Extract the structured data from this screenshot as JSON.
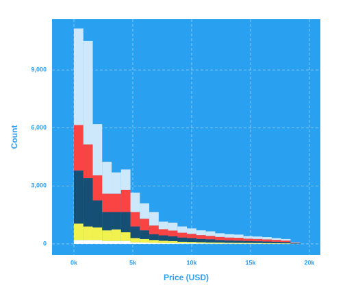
{
  "chart_data": {
    "type": "histogram",
    "x_label": "Price (USD)",
    "y_label": "Count",
    "bins": [
      0,
      800,
      1600,
      2400,
      3200,
      4000,
      4800,
      5600,
      6400,
      7200,
      8000,
      8800,
      9600,
      10400,
      11200,
      12000,
      12800,
      13600,
      14400,
      15200,
      16000,
      16800,
      17600,
      18400,
      19200
    ],
    "series": [
      {
        "color": "#ffffff",
        "values": [
          200,
          200,
          200,
          150,
          150,
          150,
          80,
          70,
          50,
          40,
          40,
          30,
          30,
          25,
          20,
          20,
          20,
          15,
          15,
          15,
          10,
          10,
          10,
          5
        ]
      },
      {
        "color": "#f1f150",
        "values": [
          850,
          700,
          650,
          550,
          600,
          450,
          220,
          180,
          150,
          120,
          100,
          80,
          70,
          60,
          55,
          50,
          40,
          40,
          35,
          30,
          30,
          25,
          20,
          5
        ]
      },
      {
        "color": "#164f74",
        "values": [
          2750,
          2500,
          1400,
          950,
          900,
          1050,
          600,
          450,
          300,
          280,
          250,
          220,
          200,
          170,
          160,
          130,
          120,
          110,
          100,
          90,
          80,
          70,
          60,
          20
        ]
      },
      {
        "color": "#fa4343",
        "values": [
          2350,
          1750,
          1300,
          950,
          950,
          1150,
          750,
          600,
          450,
          320,
          300,
          250,
          220,
          200,
          180,
          160,
          150,
          150,
          120,
          120,
          110,
          100,
          80,
          30
        ]
      },
      {
        "color": "#cde8fb",
        "values": [
          5000,
          5350,
          2650,
          1650,
          1100,
          1050,
          1000,
          800,
          700,
          390,
          410,
          320,
          280,
          245,
          235,
          190,
          170,
          165,
          130,
          125,
          120,
          95,
          80,
          20
        ]
      }
    ],
    "xlim": [
      -1860,
      20930
    ],
    "xticks": [
      {
        "value": 0,
        "label": "0k"
      },
      {
        "value": 5000,
        "label": "5k"
      },
      {
        "value": 10000,
        "label": "10k"
      },
      {
        "value": 15000,
        "label": "15k"
      },
      {
        "value": 20000,
        "label": "20k"
      }
    ],
    "ylim": [
      -570,
      11630
    ],
    "yticks": [
      {
        "value": 0,
        "label": "0"
      },
      {
        "value": 3000,
        "label": "3,000"
      },
      {
        "value": 6000,
        "label": "6,000"
      },
      {
        "value": 9000,
        "label": "9,000"
      }
    ],
    "grid": true,
    "panel_color": "#2aa1f0"
  }
}
